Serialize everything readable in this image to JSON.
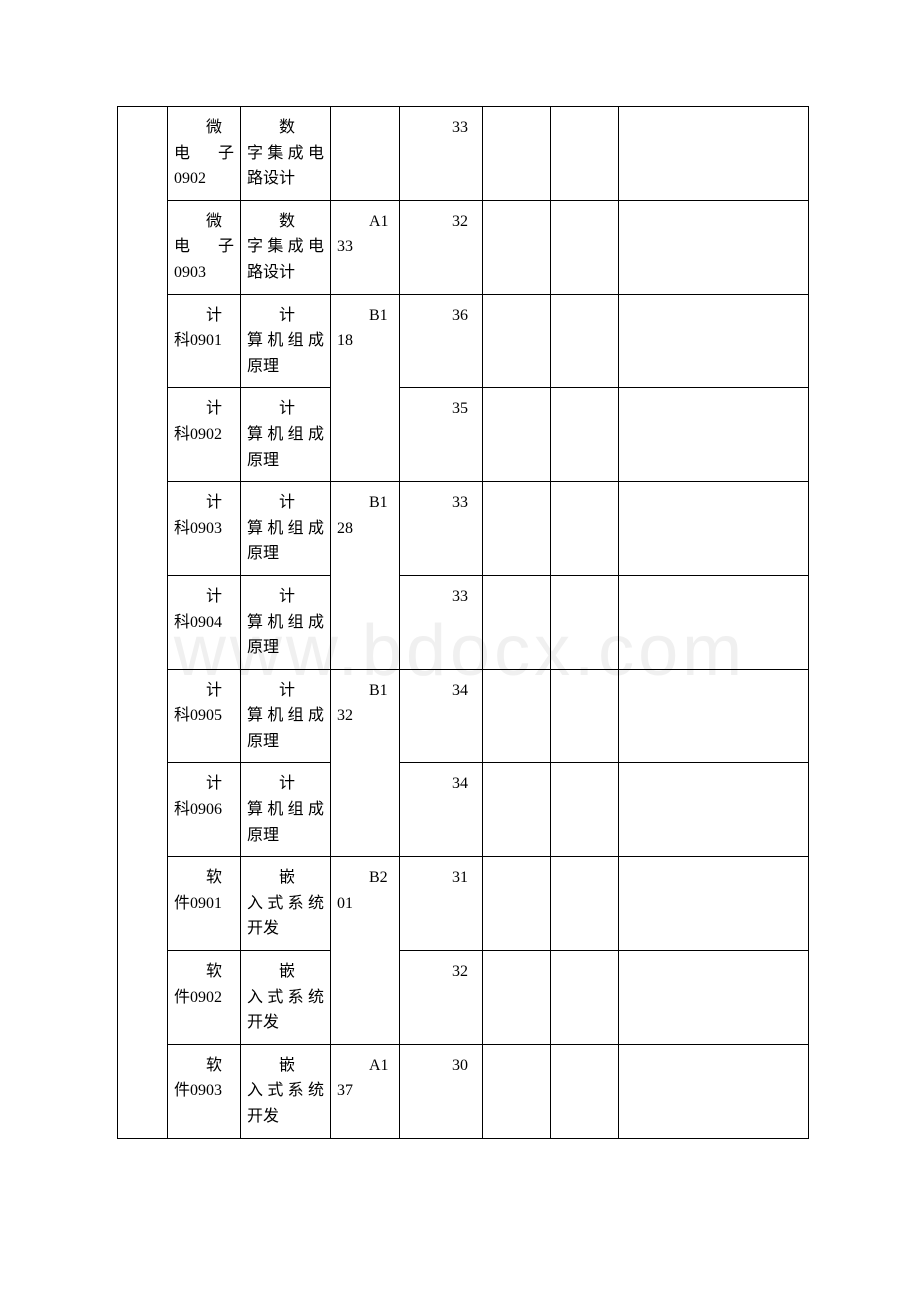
{
  "watermark": "www.bdocx.com",
  "table": {
    "border_color": "#000000",
    "background_color": "#ffffff",
    "text_color": "#000000",
    "font_size": 16,
    "font_family": "SimSun",
    "columns": [
      {
        "id": "a",
        "width": 50
      },
      {
        "id": "b",
        "width": 73
      },
      {
        "id": "c",
        "width": 90
      },
      {
        "id": "d",
        "width": 69
      },
      {
        "id": "e",
        "width": 83
      },
      {
        "id": "f",
        "width": 68
      },
      {
        "id": "g",
        "width": 68
      },
      {
        "id": "h",
        "width": 190
      }
    ],
    "rows": [
      {
        "class_first": "微",
        "class_rest": "电子0902",
        "course_first": "数",
        "course_rest": "字集成电路设计",
        "room_group": null,
        "count": "33"
      },
      {
        "class_first": "微",
        "class_rest": "电子0903",
        "course_first": "数",
        "course_rest": "字集成电路设计",
        "room_group": {
          "code": "A1",
          "num": "33",
          "span": 1
        },
        "count": "32"
      },
      {
        "class_first": "计",
        "class_rest": "科0901",
        "course_first": "计",
        "course_rest": "算机组成原理",
        "room_group": {
          "code": "B1",
          "num": "18",
          "span": 2
        },
        "count": "36"
      },
      {
        "class_first": "计",
        "class_rest": "科0902",
        "course_first": "计",
        "course_rest": "算机组成原理",
        "room_group": null,
        "count": "35"
      },
      {
        "class_first": "计",
        "class_rest": "科0903",
        "course_first": "计",
        "course_rest": "算机组成原理",
        "room_group": {
          "code": "B1",
          "num": "28",
          "span": 2
        },
        "count": "33"
      },
      {
        "class_first": "计",
        "class_rest": "科0904",
        "course_first": "计",
        "course_rest": "算机组成原理",
        "room_group": null,
        "count": "33"
      },
      {
        "class_first": "计",
        "class_rest": "科0905",
        "course_first": "计",
        "course_rest": "算机组成原理",
        "room_group": {
          "code": "B1",
          "num": "32",
          "span": 2
        },
        "count": "34"
      },
      {
        "class_first": "计",
        "class_rest": "科0906",
        "course_first": "计",
        "course_rest": "算机组成原理",
        "room_group": null,
        "count": "34"
      },
      {
        "class_first": "软",
        "class_rest": "件0901",
        "course_first": "嵌",
        "course_rest": "入式系统开发",
        "room_group": {
          "code": "B2",
          "num": "01",
          "span": 2
        },
        "count": "31"
      },
      {
        "class_first": "软",
        "class_rest": "件0902",
        "course_first": "嵌",
        "course_rest": "入式系统开发",
        "room_group": null,
        "count": "32"
      },
      {
        "class_first": "软",
        "class_rest": "件0903",
        "course_first": "嵌",
        "course_rest": "入式系统开发",
        "room_group": {
          "code": "A1",
          "num": "37",
          "span": 1
        },
        "count": "30"
      }
    ]
  }
}
